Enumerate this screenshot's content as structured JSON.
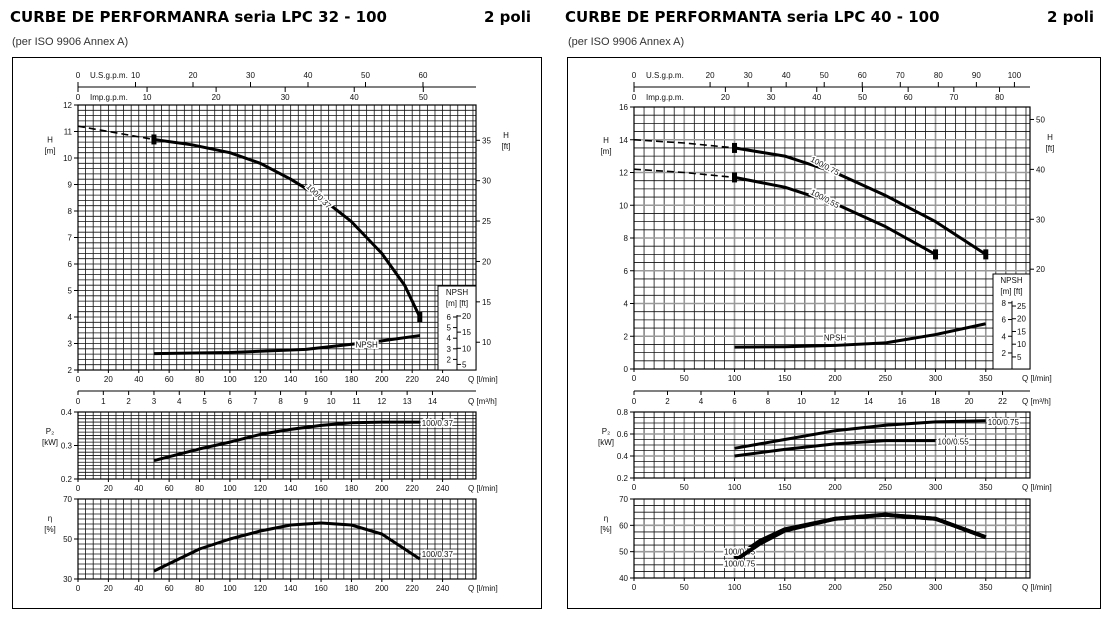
{
  "left": {
    "title": "CURBE DE PERFORMANRA seria LPC 32 - 100",
    "poles": "2 poli",
    "subtitle": "(per ISO 9906 Annex A)"
  },
  "right": {
    "title": "CURBE DE PERFORMANTA seria LPC 40 - 100",
    "poles": "2 poli",
    "subtitle": "(per ISO 9906 Annex A)"
  },
  "chart_data": [
    {
      "id": "lpc32-head",
      "type": "line",
      "xlabel": "Q [l/min]",
      "ylabel": "H",
      "yunit": "[m]",
      "y2label": "H",
      "y2unit": "[ft]",
      "y2ticks": [
        10,
        15,
        20,
        25,
        30,
        35
      ],
      "xlim": [
        0,
        262
      ],
      "ylim": [
        2,
        12
      ],
      "xticks": [
        0,
        20,
        40,
        60,
        80,
        100,
        120,
        140,
        160,
        180,
        200,
        220,
        240
      ],
      "yticks": [
        2,
        3,
        4,
        5,
        6,
        7,
        8,
        9,
        10,
        11,
        12
      ],
      "top_axes": [
        {
          "label": "U.S.g.p.m.",
          "ticks": [
            0,
            10,
            20,
            30,
            40,
            50,
            60
          ]
        },
        {
          "label": "Imp.g.p.m.",
          "ticks": [
            0,
            10,
            20,
            30,
            40,
            50
          ]
        }
      ],
      "m3h_axis": {
        "label": "Q [m³/h]",
        "ticks": [
          0,
          1,
          2,
          3,
          4,
          5,
          6,
          7,
          8,
          9,
          10,
          11,
          12,
          13,
          14
        ]
      },
      "grid": true,
      "series": [
        {
          "name": "100/0.37",
          "dashed_until": 50,
          "points": [
            [
              0,
              11.2
            ],
            [
              25,
              10.95
            ],
            [
              50,
              10.7
            ],
            [
              75,
              10.5
            ],
            [
              100,
              10.2
            ],
            [
              120,
              9.8
            ],
            [
              140,
              9.2
            ],
            [
              160,
              8.5
            ],
            [
              180,
              7.6
            ],
            [
              200,
              6.4
            ],
            [
              215,
              5.2
            ],
            [
              225,
              4.0
            ]
          ]
        }
      ],
      "npsh": {
        "label": "NPSH",
        "box_title": "NPSH",
        "box_units": "[m] [ft]",
        "m_ticks": [
          2,
          3,
          4,
          5,
          6
        ],
        "ft_ticks": [
          5,
          10,
          15,
          20
        ],
        "points": [
          [
            50,
            2.55
          ],
          [
            100,
            2.65
          ],
          [
            150,
            2.95
          ],
          [
            200,
            3.75
          ],
          [
            225,
            4.25
          ]
        ]
      }
    },
    {
      "id": "lpc32-power",
      "type": "line",
      "xlabel": "Q [l/min]",
      "ylabel": "P₂",
      "yunit": "[kW]",
      "xlim": [
        0,
        262
      ],
      "ylim": [
        0.2,
        0.4
      ],
      "xticks": [
        0,
        20,
        40,
        60,
        80,
        100,
        120,
        140,
        160,
        180,
        200,
        220,
        240
      ],
      "yticks": [
        0.2,
        0.3,
        0.4
      ],
      "grid": true,
      "series": [
        {
          "name": "100/0.37",
          "points": [
            [
              50,
              0.255
            ],
            [
              80,
              0.29
            ],
            [
              100,
              0.31
            ],
            [
              120,
              0.333
            ],
            [
              140,
              0.348
            ],
            [
              160,
              0.36
            ],
            [
              180,
              0.368
            ],
            [
              200,
              0.37
            ],
            [
              225,
              0.37
            ]
          ]
        }
      ]
    },
    {
      "id": "lpc32-eff",
      "type": "line",
      "xlabel": "Q [l/min]",
      "ylabel": "η",
      "yunit": "[%]",
      "xlim": [
        0,
        262
      ],
      "ylim": [
        30,
        70
      ],
      "xticks": [
        0,
        20,
        40,
        60,
        80,
        100,
        120,
        140,
        160,
        180,
        200,
        220,
        240
      ],
      "yticks": [
        30,
        50,
        70
      ],
      "grid": true,
      "series": [
        {
          "name": "100/0.37",
          "points": [
            [
              50,
              34
            ],
            [
              80,
              45
            ],
            [
              100,
              50
            ],
            [
              120,
              54
            ],
            [
              140,
              57
            ],
            [
              160,
              58
            ],
            [
              180,
              57
            ],
            [
              200,
              52.5
            ],
            [
              225,
              40
            ]
          ]
        }
      ]
    },
    {
      "id": "lpc40-head",
      "type": "line",
      "xlabel": "Q [l/min]",
      "ylabel": "H",
      "yunit": "[m]",
      "y2label": "H",
      "y2unit": "[ft]",
      "y2ticks": [
        20,
        30,
        40,
        50
      ],
      "xlim": [
        0,
        394
      ],
      "ylim": [
        0,
        16
      ],
      "xticks": [
        0,
        50,
        100,
        150,
        200,
        250,
        300,
        350
      ],
      "yticks": [
        0,
        2,
        4,
        6,
        8,
        10,
        12,
        14,
        16
      ],
      "top_axes": [
        {
          "label": "U.S.g.p.m.",
          "ticks": [
            0,
            20,
            30,
            40,
            50,
            60,
            70,
            80,
            90,
            100
          ]
        },
        {
          "label": "Imp.g.p.m.",
          "ticks": [
            0,
            20,
            30,
            40,
            50,
            60,
            70,
            80
          ]
        }
      ],
      "m3h_axis": {
        "label": "Q [m³/h]",
        "ticks": [
          0,
          2,
          4,
          6,
          8,
          10,
          12,
          14,
          16,
          18,
          20,
          22
        ]
      },
      "grid": true,
      "series": [
        {
          "name": "100/0.75",
          "dashed_until": 100,
          "points": [
            [
              0,
              14.0
            ],
            [
              50,
              13.8
            ],
            [
              100,
              13.5
            ],
            [
              150,
              13.0
            ],
            [
              200,
              12.0
            ],
            [
              250,
              10.6
            ],
            [
              300,
              9.0
            ],
            [
              350,
              7.0
            ]
          ]
        },
        {
          "name": "100/0.55",
          "dashed_until": 100,
          "points": [
            [
              0,
              12.2
            ],
            [
              50,
              12.0
            ],
            [
              100,
              11.7
            ],
            [
              150,
              11.1
            ],
            [
              200,
              10.1
            ],
            [
              250,
              8.7
            ],
            [
              300,
              7.0
            ]
          ]
        }
      ],
      "npsh": {
        "label": "NPSH",
        "box_title": "NPSH",
        "box_units": "[m] [ft]",
        "m_ticks": [
          2,
          4,
          6,
          8
        ],
        "ft_ticks": [
          5,
          10,
          15,
          20,
          25
        ],
        "points": [
          [
            100,
            2.7
          ],
          [
            150,
            2.75
          ],
          [
            200,
            2.9
          ],
          [
            250,
            3.2
          ],
          [
            300,
            4.2
          ],
          [
            350,
            5.5
          ]
        ]
      }
    },
    {
      "id": "lpc40-power",
      "type": "line",
      "xlabel": "Q [l/min]",
      "ylabel": "P₂",
      "yunit": "[kW]",
      "xlim": [
        0,
        394
      ],
      "ylim": [
        0.2,
        0.8
      ],
      "xticks": [
        0,
        50,
        100,
        150,
        200,
        250,
        300,
        350
      ],
      "yticks": [
        0.2,
        0.4,
        0.6,
        0.8
      ],
      "grid": true,
      "series": [
        {
          "name": "100/0.75",
          "points": [
            [
              100,
              0.47
            ],
            [
              150,
              0.55
            ],
            [
              200,
              0.63
            ],
            [
              250,
              0.68
            ],
            [
              300,
              0.71
            ],
            [
              350,
              0.72
            ]
          ]
        },
        {
          "name": "100/0.55",
          "points": [
            [
              100,
              0.4
            ],
            [
              150,
              0.46
            ],
            [
              200,
              0.51
            ],
            [
              250,
              0.54
            ],
            [
              300,
              0.54
            ]
          ]
        }
      ]
    },
    {
      "id": "lpc40-eff",
      "type": "line",
      "xlabel": "Q [l/min]",
      "ylabel": "η",
      "yunit": "[%]",
      "xlim": [
        0,
        394
      ],
      "ylim": [
        40,
        70
      ],
      "xticks": [
        0,
        50,
        100,
        150,
        200,
        250,
        300,
        350
      ],
      "yticks": [
        40,
        50,
        60,
        70
      ],
      "grid": true,
      "series": [
        {
          "name": "100/0.55",
          "points": [
            [
              100,
              47.5
            ],
            [
              125,
              54
            ],
            [
              150,
              58.5
            ],
            [
              200,
              62.5
            ],
            [
              250,
              64
            ],
            [
              300,
              62.5
            ],
            [
              350,
              55.5
            ]
          ]
        },
        {
          "name": "100/0.75",
          "points": [
            [
              100,
              46.5
            ],
            [
              125,
              53
            ],
            [
              150,
              58
            ],
            [
              200,
              62.5
            ],
            [
              250,
              64
            ],
            [
              300,
              62.5
            ],
            [
              350,
              55.5
            ]
          ]
        }
      ]
    }
  ]
}
